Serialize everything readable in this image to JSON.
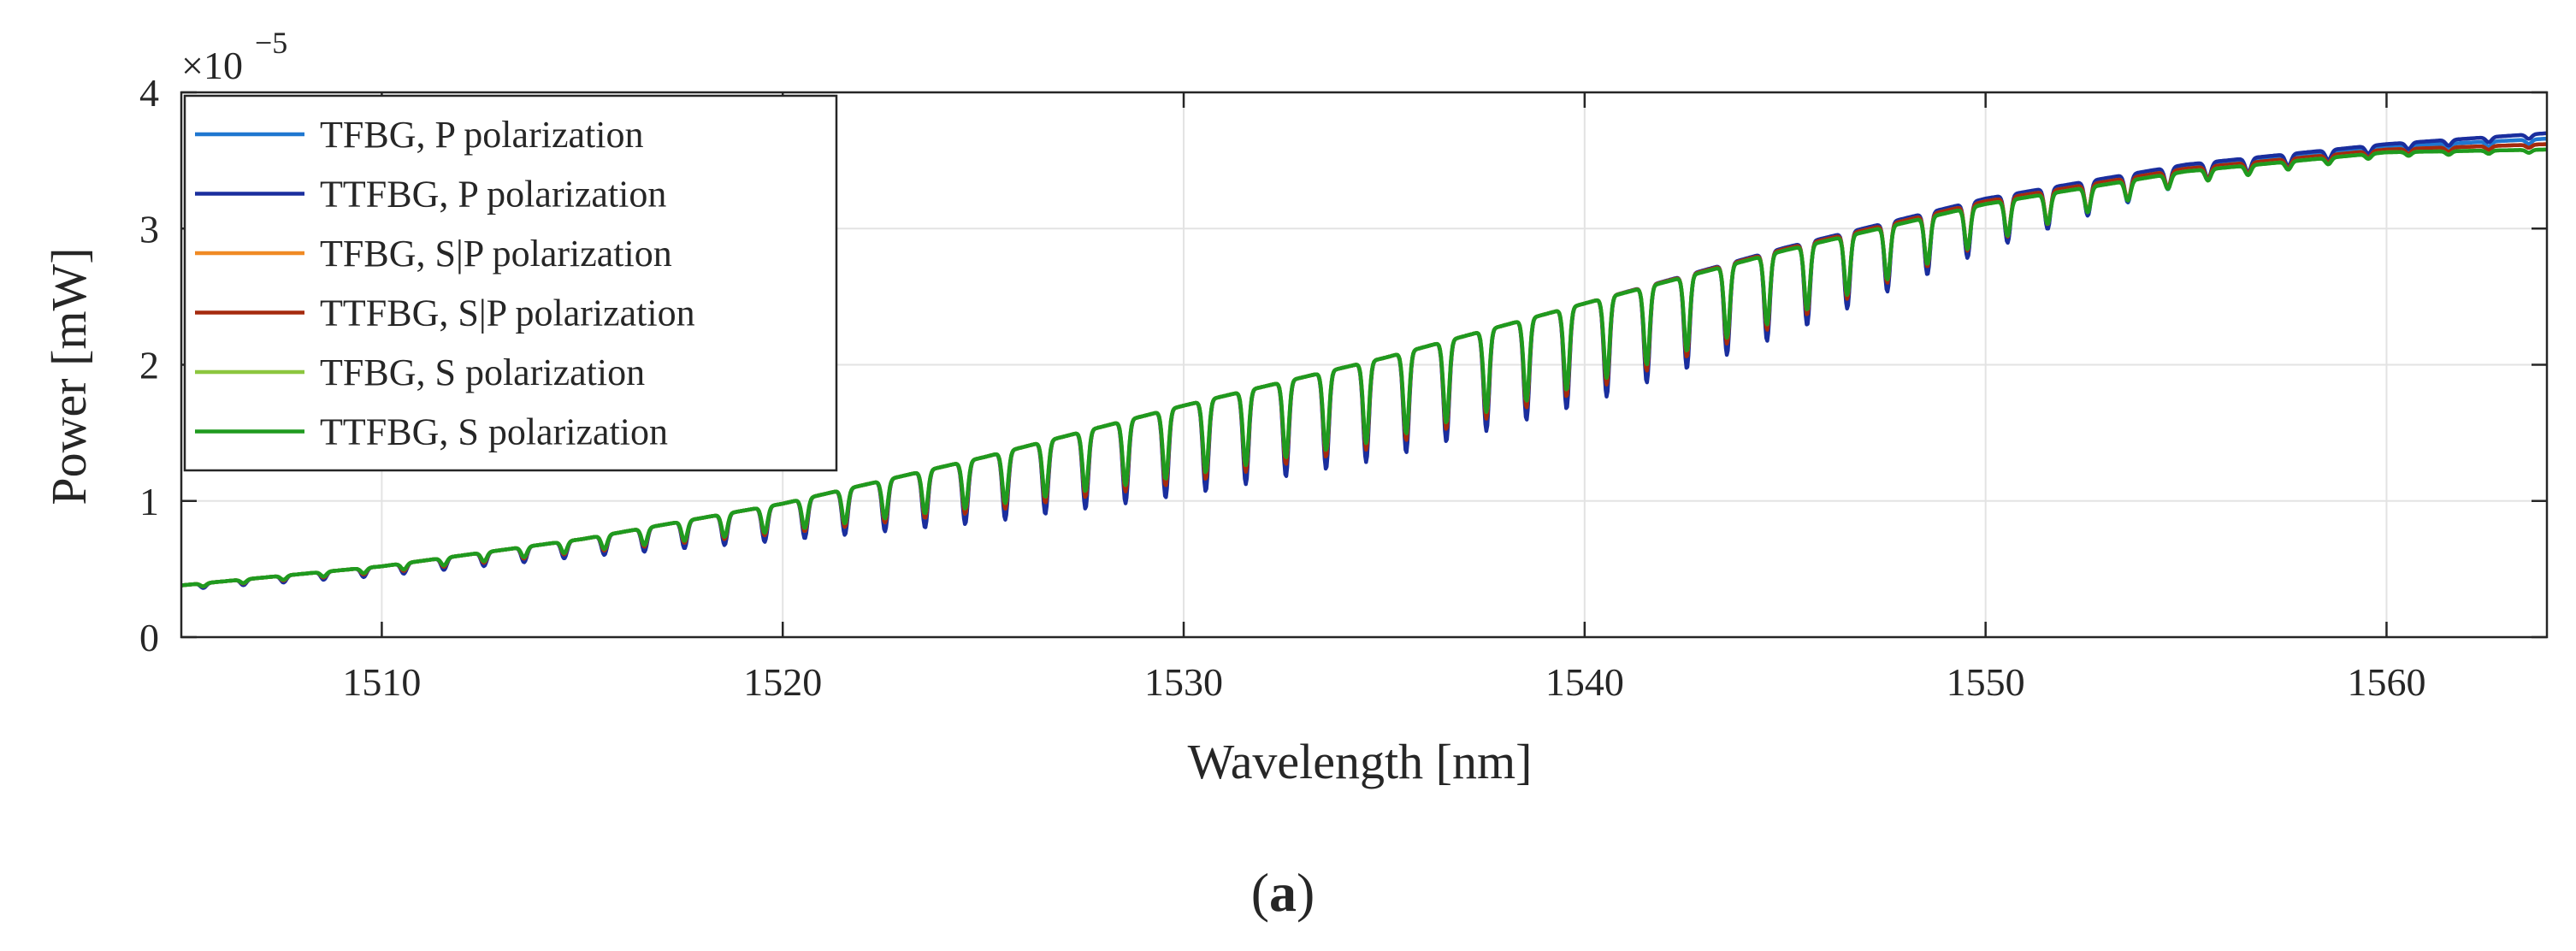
{
  "chart_data": {
    "type": "line",
    "title": "",
    "xlabel": "Wavelength [nm]",
    "ylabel": "Power [mW]",
    "xlim": [
      1505,
      1564
    ],
    "ylim": [
      0,
      4
    ],
    "x_ticks": [
      1510,
      1520,
      1530,
      1540,
      1550,
      1560
    ],
    "y_ticks": [
      0,
      1,
      2,
      3,
      4
    ],
    "x_tick_labels": [
      "1510",
      "1520",
      "1530",
      "1540",
      "1550",
      "1560"
    ],
    "y_tick_labels": [
      "0",
      "1",
      "2",
      "3",
      "4"
    ],
    "y_multiplier_base": "×10",
    "y_multiplier_exponent": "−5",
    "grid": true,
    "legend_position": "top-left",
    "resonance_spacing_nm": 1.0,
    "x": [
      1505,
      1510,
      1515,
      1520,
      1525,
      1530,
      1535,
      1540,
      1545,
      1550,
      1555,
      1560,
      1564
    ],
    "series": [
      {
        "name": "TFBG, P polarization",
        "color": "#1f77d0",
        "envelope": [
          0.38,
          0.52,
          0.72,
          0.98,
          1.32,
          1.7,
          2.05,
          2.45,
          2.85,
          3.2,
          3.45,
          3.6,
          3.66
        ],
        "dip_depth": [
          0.03,
          0.06,
          0.12,
          0.25,
          0.45,
          0.62,
          0.7,
          0.7,
          0.6,
          0.35,
          0.12,
          0.05,
          0.03
        ]
      },
      {
        "name": "TTFBG, P polarization",
        "color": "#1a2e9e",
        "envelope": [
          0.38,
          0.52,
          0.72,
          0.98,
          1.32,
          1.7,
          2.05,
          2.45,
          2.86,
          3.22,
          3.47,
          3.62,
          3.7
        ],
        "dip_depth": [
          0.03,
          0.07,
          0.13,
          0.27,
          0.48,
          0.66,
          0.74,
          0.74,
          0.64,
          0.38,
          0.13,
          0.05,
          0.03
        ]
      },
      {
        "name": "TFBG, S|P polarization",
        "color": "#f08a24",
        "envelope": [
          0.38,
          0.52,
          0.72,
          0.98,
          1.32,
          1.7,
          2.05,
          2.45,
          2.85,
          3.2,
          3.44,
          3.58,
          3.62
        ],
        "dip_depth": [
          0.02,
          0.05,
          0.1,
          0.22,
          0.4,
          0.56,
          0.64,
          0.64,
          0.54,
          0.3,
          0.1,
          0.04,
          0.02
        ]
      },
      {
        "name": "TTFBG, S|P polarization",
        "color": "#a52a0e",
        "envelope": [
          0.38,
          0.52,
          0.72,
          0.98,
          1.32,
          1.7,
          2.05,
          2.45,
          2.85,
          3.2,
          3.44,
          3.58,
          3.62
        ],
        "dip_depth": [
          0.02,
          0.05,
          0.1,
          0.22,
          0.4,
          0.57,
          0.65,
          0.65,
          0.55,
          0.31,
          0.1,
          0.04,
          0.02
        ]
      },
      {
        "name": "TFBG, S polarization",
        "color": "#8cc63f",
        "envelope": [
          0.38,
          0.52,
          0.72,
          0.98,
          1.32,
          1.7,
          2.05,
          2.45,
          2.84,
          3.18,
          3.42,
          3.56,
          3.58
        ],
        "dip_depth": [
          0.02,
          0.04,
          0.09,
          0.2,
          0.36,
          0.52,
          0.6,
          0.6,
          0.5,
          0.28,
          0.09,
          0.03,
          0.02
        ]
      },
      {
        "name": "TTFBG, S polarization",
        "color": "#1f9a1f",
        "envelope": [
          0.38,
          0.52,
          0.72,
          0.98,
          1.32,
          1.7,
          2.05,
          2.45,
          2.84,
          3.18,
          3.42,
          3.56,
          3.58
        ],
        "dip_depth": [
          0.02,
          0.04,
          0.09,
          0.2,
          0.36,
          0.52,
          0.6,
          0.6,
          0.5,
          0.28,
          0.09,
          0.03,
          0.02
        ]
      }
    ]
  },
  "caption": {
    "letter": "a",
    "open_paren": "(",
    "close_paren": ")"
  }
}
